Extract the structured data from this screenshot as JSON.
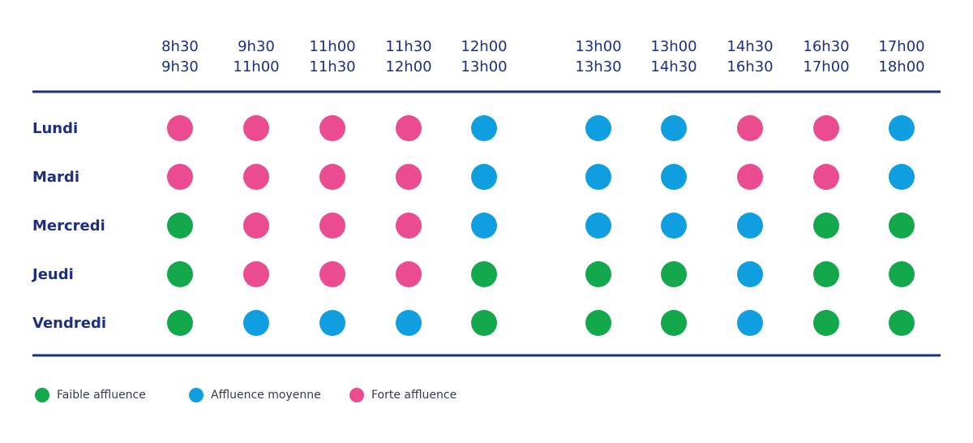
{
  "columns": [
    {
      "start": "8h30",
      "end": "9h30"
    },
    {
      "start": "9h30",
      "end": "11h00"
    },
    {
      "start": "11h00",
      "end": "11h30"
    },
    {
      "start": "11h30",
      "end": "12h00"
    },
    {
      "start": "12h00",
      "end": "13h00"
    },
    {
      "start": "13h00",
      "end": "13h30"
    },
    {
      "start": "13h00",
      "end": "14h30"
    },
    {
      "start": "14h30",
      "end": "16h30"
    },
    {
      "start": "16h30",
      "end": "17h00"
    },
    {
      "start": "17h00",
      "end": "18h00"
    }
  ],
  "rows": [
    {
      "day": "Lundi",
      "levels": [
        2,
        2,
        2,
        2,
        1,
        1,
        1,
        2,
        2,
        1
      ]
    },
    {
      "day": "Mardi",
      "levels": [
        2,
        2,
        2,
        2,
        1,
        1,
        1,
        2,
        2,
        1
      ]
    },
    {
      "day": "Mercredi",
      "levels": [
        0,
        2,
        2,
        2,
        1,
        1,
        1,
        1,
        0,
        0
      ]
    },
    {
      "day": "Jeudi",
      "levels": [
        0,
        2,
        2,
        2,
        0,
        0,
        0,
        1,
        0,
        0
      ]
    },
    {
      "day": "Vendredi",
      "levels": [
        0,
        1,
        1,
        1,
        0,
        0,
        0,
        1,
        0,
        0
      ]
    }
  ],
  "legend": [
    {
      "label": "Faible affluence",
      "color": "#13a84b"
    },
    {
      "label": "Affluence moyenne",
      "color": "#0f9fe0"
    },
    {
      "label": "Forte affluence",
      "color": "#eb4b8f"
    }
  ]
}
